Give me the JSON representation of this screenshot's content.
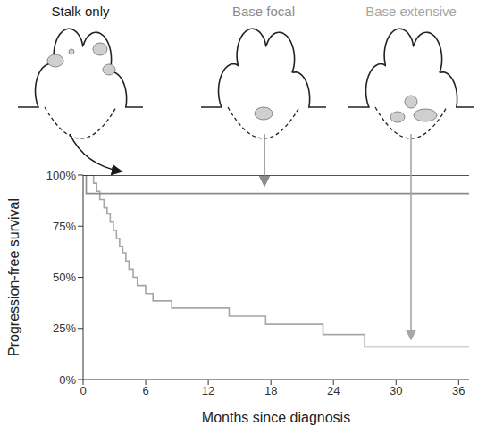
{
  "chart_data": {
    "type": "line",
    "x_label": "Months since diagnosis",
    "y_label": "Progression-free survival",
    "x": [
      0,
      0.3,
      1,
      1.3,
      1.6,
      2,
      2.3,
      2.6,
      2.9,
      3.2,
      3.5,
      3.8,
      4.1,
      4.4,
      4.8,
      5.2,
      6,
      6.7,
      8.5,
      14,
      17.5,
      23,
      27,
      37
    ],
    "series": [
      {
        "name": "Stalk only",
        "color": "#1a1a1a",
        "values": [
          100,
          100,
          100,
          100,
          100,
          100,
          100,
          100,
          100,
          100,
          100,
          100,
          100,
          100,
          100,
          100,
          100,
          100,
          100,
          100,
          100,
          100,
          100,
          100
        ]
      },
      {
        "name": "Base focal",
        "color": "#8c8c8c",
        "values": [
          100,
          91,
          91,
          91,
          91,
          91,
          91,
          91,
          91,
          91,
          91,
          91,
          91,
          91,
          91,
          91,
          91,
          91,
          91,
          91,
          91,
          91,
          91,
          91
        ]
      },
      {
        "name": "Base extensive",
        "color": "#a6a6a6",
        "values": [
          100,
          100,
          96,
          92,
          88,
          84,
          81,
          77,
          73,
          69,
          65,
          62,
          58,
          54,
          50,
          46,
          42,
          38.5,
          35,
          31,
          27,
          22,
          16,
          16
        ]
      }
    ],
    "line_style": "step",
    "xlim": [
      0,
      37
    ],
    "xticks": [
      0,
      6,
      12,
      18,
      24,
      30,
      36
    ],
    "ylim": [
      0,
      100
    ],
    "yticks": [
      {
        "value": 0,
        "label": "0%"
      },
      {
        "value": 25,
        "label": "25%"
      },
      {
        "value": 50,
        "label": "50%"
      },
      {
        "value": 75,
        "label": "75%"
      },
      {
        "value": 100,
        "label": "100%"
      }
    ],
    "grid": false
  }
}
